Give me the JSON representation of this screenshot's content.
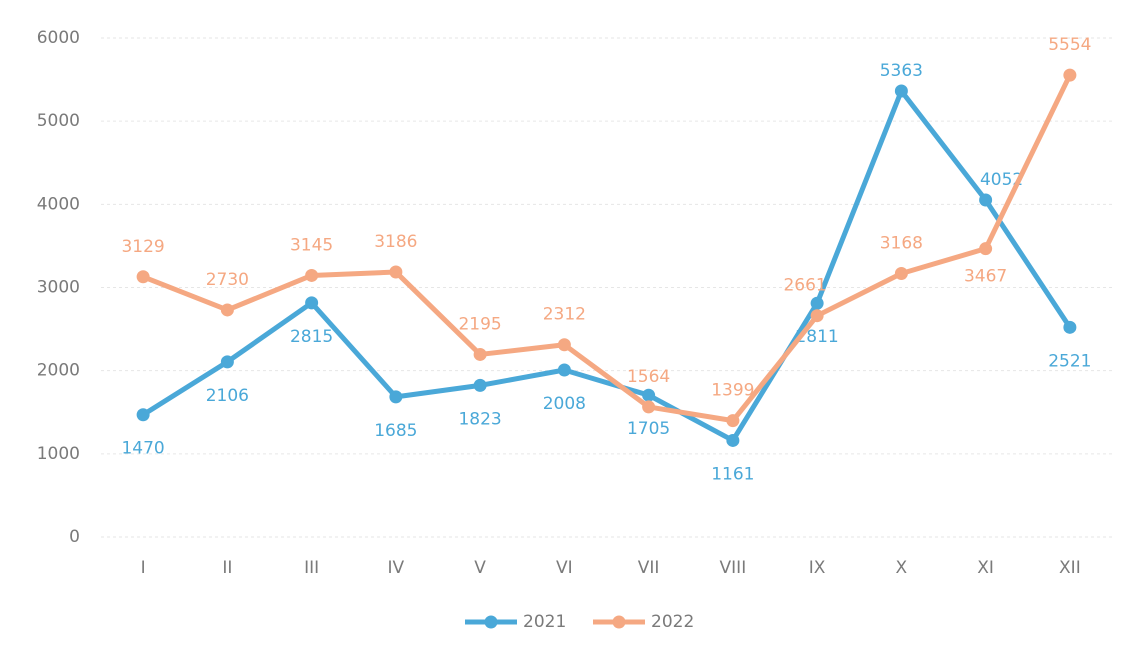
{
  "chart_data": {
    "type": "line",
    "categories": [
      "I",
      "II",
      "III",
      "IV",
      "V",
      "VI",
      "VII",
      "VIII",
      "IX",
      "X",
      "XI",
      "XII"
    ],
    "series": [
      {
        "name": "2021",
        "color": "#4aa8d8",
        "values": [
          1470,
          2106,
          2815,
          1685,
          1823,
          2008,
          1705,
          1161,
          2811,
          5363,
          4052,
          2521
        ]
      },
      {
        "name": "2022",
        "color": "#f5a882",
        "values": [
          3129,
          2730,
          3145,
          3186,
          2195,
          2312,
          1564,
          1399,
          2661,
          3168,
          3467,
          5554
        ]
      }
    ],
    "ylim": [
      0,
      6000
    ],
    "yticks": [
      0,
      1000,
      2000,
      3000,
      4000,
      5000,
      6000
    ],
    "grid": true,
    "legend": "bottom"
  }
}
